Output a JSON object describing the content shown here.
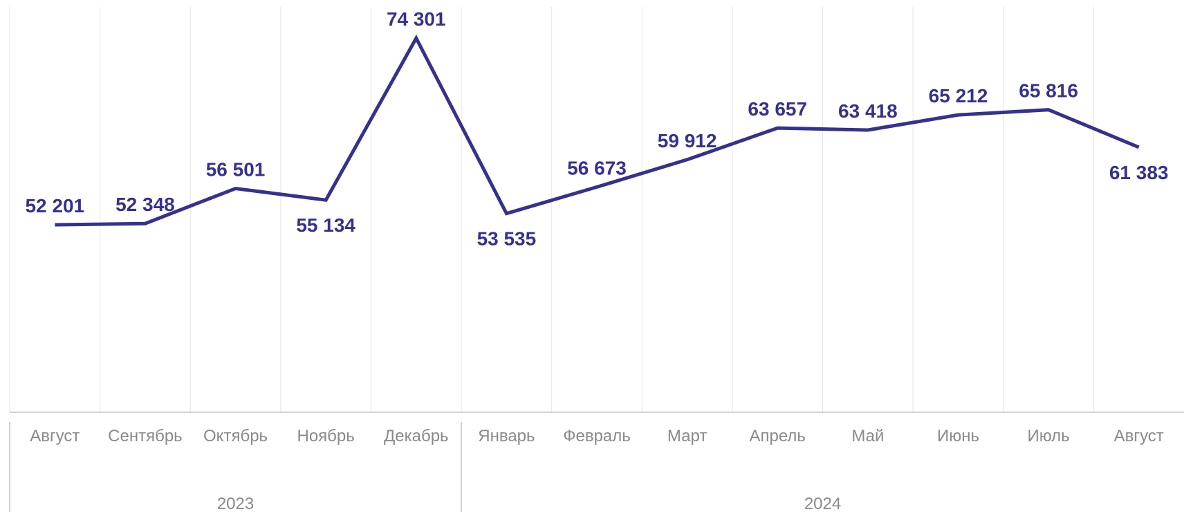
{
  "chart_data": {
    "type": "line",
    "title": "",
    "xlabel": "",
    "ylabel": "",
    "categories": [
      "Август",
      "Сентябрь",
      "Октябрь",
      "Ноябрь",
      "Декабрь",
      "Январь",
      "Февраль",
      "Март",
      "Апрель",
      "Май",
      "Июнь",
      "Июль",
      "Август"
    ],
    "groups": [
      {
        "label": "2023",
        "count": 5
      },
      {
        "label": "2024",
        "count": 8
      }
    ],
    "series": [
      {
        "values": [
          52201,
          52348,
          56501,
          55134,
          74301,
          53535,
          56673,
          59912,
          63657,
          63418,
          65212,
          65816,
          61383
        ],
        "labels": [
          "52 201",
          "52 348",
          "56 501",
          "55 134",
          "74 301",
          "53 535",
          "56 673",
          "59 912",
          "63 657",
          "63 418",
          "65 212",
          "65 816",
          "61 383"
        ],
        "label_positions": [
          "above",
          "above",
          "above",
          "below",
          "above",
          "below",
          "above",
          "above",
          "above",
          "above",
          "above",
          "above",
          "below"
        ]
      }
    ],
    "ylim": [
      30000,
      78000
    ],
    "grid": true,
    "y_axis_visible": false,
    "colors": {
      "line": "#35318f",
      "labels": "#35318f",
      "grid": "#e6e6e6",
      "ticks": "#8a8a8a"
    }
  }
}
